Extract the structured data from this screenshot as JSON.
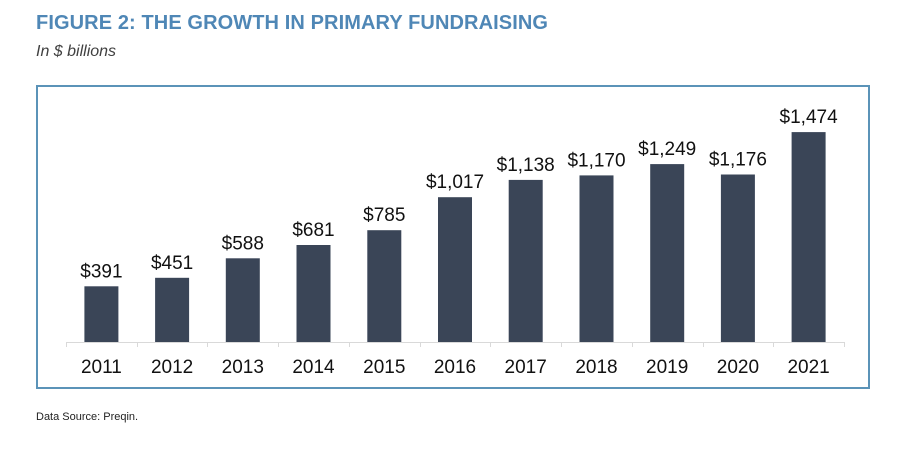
{
  "title": "FIGURE 2: THE GROWTH IN PRIMARY FUNDRAISING",
  "subtitle": "In $ billions",
  "source": "Data Source: Preqin.",
  "colors": {
    "title": "#4f87b6",
    "bar": "#3a4557",
    "frame": "#5b93b8",
    "axis": "#d9d9d9"
  },
  "chart_data": {
    "type": "bar",
    "categories": [
      "2011",
      "2012",
      "2013",
      "2014",
      "2015",
      "2016",
      "2017",
      "2018",
      "2019",
      "2020",
      "2021"
    ],
    "values": [
      391,
      451,
      588,
      681,
      785,
      1017,
      1138,
      1170,
      1249,
      1176,
      1474
    ],
    "data_labels": [
      "$391",
      "$451",
      "$588",
      "$681",
      "$785",
      "$1,017",
      "$1,138",
      "$1,170",
      "$1,249",
      "$1,176",
      "$1,474"
    ],
    "title": "FIGURE 2: THE GROWTH IN PRIMARY FUNDRAISING",
    "subtitle": "In $ billions",
    "xlabel": "",
    "ylabel": "",
    "ylim": [
      0,
      1650
    ],
    "grid": false,
    "legend": "none"
  }
}
